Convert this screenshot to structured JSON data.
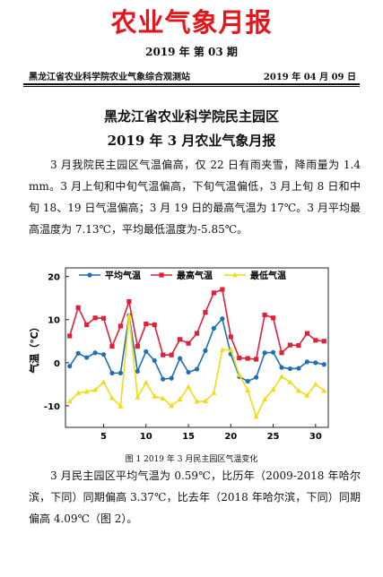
{
  "header": {
    "masthead": "农业气象月报",
    "issue": "2019 年 第 03 期",
    "station": "黑龙江省农业科学院农业气象综合观测站",
    "date": "2019 年 04 月 09 日"
  },
  "article": {
    "title_line1": "黑龙江省农业科学院民主园区",
    "title_line2": "2019 年 3 月农业气象月报",
    "paragraph1": "3 月我院民主园区气温偏高，仅 22 日有雨夹雪，降雨量为 1.4 mm。3 月上旬和中旬气温偏高，下旬气温偏低，3 月上旬 8 日和中旬 18、19 日气温偏高；3 月 19 日的最高气温为 17℃。3 月平均最高温度为 7.13℃，平均最低温度为-5.85℃。",
    "figure_caption": "图 1  2019 年 3 月民主园区气温变化",
    "paragraph2": "3 月民主园区平均气温为 0.59℃，比历年（2009-2018 年哈尔滨，下同）同期偏高 3.37℃，比去年（2018 年哈尔滨，下同）同期偏高 4.09℃（图 2）。"
  },
  "chart_data": {
    "type": "line",
    "ylabel": "气温（℃）",
    "xlabel": "",
    "ylim": [
      -15,
      22
    ],
    "xlim": [
      0.5,
      31.5
    ],
    "yticks": [
      -10,
      0,
      10,
      20
    ],
    "xticks": [
      5,
      10,
      15,
      20,
      25,
      30
    ],
    "grid": false,
    "legend_position": "top",
    "x": [
      1,
      2,
      3,
      4,
      5,
      6,
      7,
      8,
      9,
      10,
      11,
      12,
      13,
      14,
      15,
      16,
      17,
      18,
      19,
      20,
      21,
      22,
      23,
      24,
      25,
      26,
      27,
      28,
      29,
      30,
      31
    ],
    "series": [
      {
        "name": "平均气温",
        "color": "#1f6fb5",
        "marker": "circle",
        "values": [
          -0.8,
          2.2,
          1.2,
          2.3,
          1.9,
          -2.4,
          -2.4,
          11.0,
          -2.0,
          2.6,
          0.5,
          -3.8,
          -3.6,
          1.0,
          -2.2,
          -1.5,
          2.8,
          8.0,
          10.2,
          2.0,
          -3.2,
          -4.3,
          -3.4,
          2.3,
          2.4,
          -1.1,
          -1.4,
          -1.3,
          0.2,
          0.0,
          -0.4
        ]
      },
      {
        "name": "最高气温",
        "color": "#e0203a",
        "marker": "square",
        "values": [
          6.2,
          12.8,
          8.8,
          10.4,
          10.3,
          3.8,
          8.5,
          14.2,
          3.8,
          9.0,
          8.8,
          1.8,
          1.8,
          5.4,
          4.5,
          6.8,
          11.7,
          16.2,
          17.0,
          6.0,
          1.1,
          1.0,
          0.8,
          11.1,
          10.4,
          2.3,
          4.1,
          4.0,
          6.8,
          5.2,
          5.0
        ]
      },
      {
        "name": "最低气温",
        "color": "#f0dc16",
        "marker": "triangle",
        "values": [
          -9.0,
          -7.0,
          -6.7,
          -6.3,
          -4.5,
          -8.2,
          -10.1,
          11.0,
          -8.0,
          -4.6,
          -7.8,
          -8.3,
          -10.0,
          -8.5,
          -5.6,
          -9.0,
          -8.9,
          -7.0,
          3.0,
          3.0,
          -2.8,
          -6.4,
          -12.5,
          -8.5,
          -6.2,
          -3.2,
          -4.5,
          -6.5,
          -7.6,
          -5.0,
          -6.5
        ]
      }
    ]
  }
}
